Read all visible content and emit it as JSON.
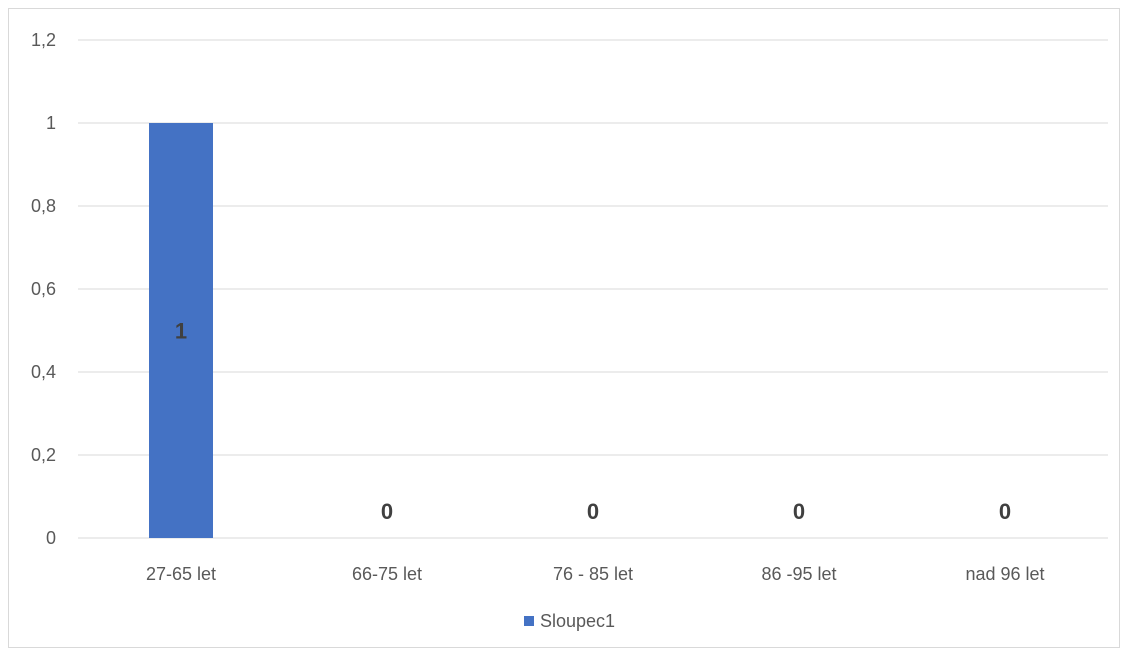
{
  "chart_data": {
    "type": "bar",
    "categories": [
      "27-65 let",
      "66-75 let",
      "76 - 85 let",
      "86 -95 let",
      "nad 96 let"
    ],
    "series": [
      {
        "name": "Sloupec1",
        "values": [
          1,
          0,
          0,
          0,
          0
        ],
        "color": "#4472C4"
      }
    ],
    "y_ticks": [
      "0",
      "0,2",
      "0,4",
      "0,6",
      "0,8",
      "1",
      "1,2"
    ],
    "ylim": [
      0,
      1.2
    ],
    "grid": true,
    "legend": "bottom",
    "data_labels": true
  }
}
